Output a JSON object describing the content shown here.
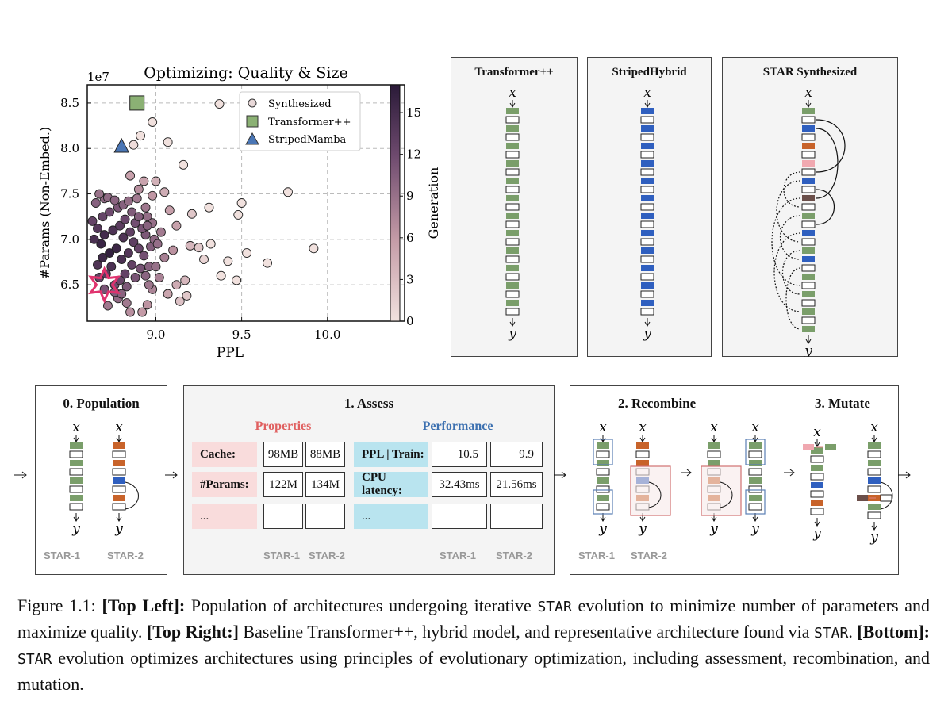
{
  "chart_data": {
    "type": "scatter",
    "title": "Optimizing: Quality & Size",
    "xlabel": "PPL",
    "ylabel": "#Params (Non-Embed.)",
    "y_offset_label": "1e7",
    "xlim": [
      8.6,
      10.45
    ],
    "ylim": [
      6.1,
      8.7
    ],
    "x_ticks": [
      "9.0",
      "9.5",
      "10.0"
    ],
    "y_ticks": [
      "6.5",
      "7.0",
      "7.5",
      "8.0",
      "8.5"
    ],
    "grid": true,
    "legend": {
      "placement": "top-right",
      "entries": [
        "Synthesized",
        "Transformer++",
        "StripedMamba"
      ]
    },
    "colorbar": {
      "label": "Generation",
      "ticks": [
        "0",
        "3",
        "6",
        "9",
        "12",
        "15"
      ],
      "range": [
        0,
        17
      ]
    },
    "special_points": [
      {
        "name": "Transformer++",
        "x": 8.89,
        "y": 8.5,
        "marker": "square",
        "color": "#8bb174"
      },
      {
        "name": "StripedMamba",
        "x": 8.8,
        "y": 8.02,
        "marker": "triangle",
        "color": "#4a76b5"
      },
      {
        "name": "best",
        "x": 8.7,
        "y": 6.5,
        "marker": "star",
        "color": "#e0336e"
      }
    ],
    "series": [
      {
        "name": "Synthesized",
        "points": [
          [
            9.37,
            8.49
          ],
          [
            8.98,
            8.29
          ],
          [
            8.91,
            8.14
          ],
          [
            9.07,
            8.07
          ],
          [
            8.87,
            8.04
          ],
          [
            9.16,
            7.82
          ],
          [
            8.85,
            7.7
          ],
          [
            8.93,
            7.64
          ],
          [
            9.0,
            7.64
          ],
          [
            9.05,
            7.52
          ],
          [
            8.98,
            7.48
          ],
          [
            9.31,
            7.35
          ],
          [
            9.5,
            7.4
          ],
          [
            9.77,
            7.52
          ],
          [
            9.48,
            7.27
          ],
          [
            9.21,
            7.28
          ],
          [
            9.08,
            7.32
          ],
          [
            8.95,
            7.25
          ],
          [
            9.12,
            7.15
          ],
          [
            9.03,
            7.08
          ],
          [
            9.2,
            6.93
          ],
          [
            9.25,
            6.91
          ],
          [
            9.32,
            6.95
          ],
          [
            9.1,
            6.88
          ],
          [
            9.05,
            6.8
          ],
          [
            9.28,
            6.78
          ],
          [
            9.42,
            6.76
          ],
          [
            9.53,
            6.85
          ],
          [
            9.65,
            6.74
          ],
          [
            9.92,
            6.9
          ],
          [
            9.47,
            6.55
          ],
          [
            9.38,
            6.6
          ],
          [
            9.17,
            6.55
          ],
          [
            9.12,
            6.5
          ],
          [
            9.02,
            6.58
          ],
          [
            9.07,
            6.4
          ],
          [
            8.98,
            6.45
          ],
          [
            9.14,
            6.32
          ],
          [
            9.18,
            6.38
          ],
          [
            8.95,
            6.28
          ],
          [
            8.92,
            6.2
          ],
          [
            8.85,
            6.2
          ],
          [
            8.83,
            6.3
          ],
          [
            8.78,
            6.35
          ],
          [
            8.72,
            6.27
          ],
          [
            8.76,
            6.5
          ],
          [
            8.7,
            6.45
          ],
          [
            8.67,
            6.58
          ],
          [
            8.71,
            6.62
          ],
          [
            8.74,
            6.7
          ],
          [
            8.66,
            6.72
          ],
          [
            8.69,
            6.8
          ],
          [
            8.73,
            6.85
          ],
          [
            8.77,
            6.9
          ],
          [
            8.68,
            6.95
          ],
          [
            8.64,
            7.0
          ],
          [
            8.7,
            7.05
          ],
          [
            8.75,
            7.1
          ],
          [
            8.79,
            7.15
          ],
          [
            8.66,
            7.12
          ],
          [
            8.63,
            7.2
          ],
          [
            8.69,
            7.25
          ],
          [
            8.73,
            7.3
          ],
          [
            8.78,
            7.35
          ],
          [
            8.65,
            7.4
          ],
          [
            8.7,
            7.45
          ],
          [
            8.67,
            7.5
          ],
          [
            8.72,
            7.46
          ],
          [
            8.76,
            7.43
          ],
          [
            8.81,
            7.38
          ],
          [
            8.84,
            7.42
          ],
          [
            8.86,
            7.3
          ],
          [
            8.82,
            7.22
          ],
          [
            8.88,
            7.18
          ],
          [
            8.85,
            7.08
          ],
          [
            8.81,
            7.02
          ],
          [
            8.87,
            6.97
          ],
          [
            8.9,
            6.9
          ],
          [
            8.84,
            6.85
          ],
          [
            8.8,
            6.78
          ],
          [
            8.86,
            6.72
          ],
          [
            8.91,
            6.68
          ],
          [
            8.82,
            6.62
          ],
          [
            8.88,
            6.58
          ],
          [
            8.79,
            6.55
          ],
          [
            8.83,
            6.48
          ],
          [
            8.76,
            6.42
          ],
          [
            8.8,
            6.4
          ],
          [
            8.94,
            6.6
          ],
          [
            8.96,
            6.7
          ],
          [
            8.93,
            6.82
          ],
          [
            8.97,
            6.92
          ],
          [
            8.99,
            7.0
          ],
          [
            8.94,
            7.05
          ],
          [
            8.92,
            7.12
          ],
          [
            8.98,
            7.18
          ],
          [
            8.9,
            7.25
          ],
          [
            8.94,
            7.35
          ],
          [
            8.89,
            7.45
          ],
          [
            8.9,
            7.55
          ],
          [
            8.95,
            7.15
          ],
          [
            9.01,
            6.95
          ],
          [
            9.0,
            6.7
          ],
          [
            8.96,
            6.5
          ]
        ]
      }
    ]
  },
  "top_right": {
    "transformer": {
      "title": "Transformer++",
      "x": "x",
      "y": "y"
    },
    "striped": {
      "title": "StripedHybrid",
      "x": "x",
      "y": "y"
    },
    "star": {
      "title": "STAR Synthesized",
      "x": "x",
      "y": "y"
    },
    "colors": {
      "green": "#7a9e6a",
      "blue": "#2f5fbf",
      "orange": "#c8632a",
      "pink": "#f0a8b0",
      "brown": "#6b4f4a",
      "title_green": "#5a8a4a",
      "title_blue": "#3c6a9c",
      "title_pink": "#d83a6e"
    }
  },
  "bottom": {
    "population": {
      "title": "0. Population",
      "star1": "STAR-1",
      "star2": "STAR-2"
    },
    "assess": {
      "title": "1. Assess",
      "properties_header": "Properties",
      "performance_header": "Performance",
      "properties": [
        {
          "label": "Cache:",
          "v1": "98MB",
          "v2": "88MB"
        },
        {
          "label": "#Params:",
          "v1": "122M",
          "v2": "134M"
        },
        {
          "label": "...",
          "v1": "",
          "v2": ""
        }
      ],
      "performance": [
        {
          "label": "PPL | Train:",
          "v1": "10.5",
          "v2": "9.9"
        },
        {
          "label": "CPU latency:",
          "v1": "32.43ms",
          "v2": "21.56ms"
        },
        {
          "label": "...",
          "v1": "",
          "v2": ""
        }
      ],
      "star1": "STAR-1",
      "star2": "STAR-2"
    },
    "recombine": {
      "title": "2. Recombine",
      "star1": "STAR-1",
      "star2": "STAR-2"
    },
    "mutate": {
      "title": "3. Mutate"
    },
    "xlabel": "x",
    "ylabel": "y"
  },
  "caption": {
    "figure_label": "Figure 1.1:",
    "top_left_label": "[Top Left]:",
    "top_left_text": " Population of architectures undergoing iterative ",
    "star_word": "STAR",
    "top_left_text2": " evolution to minimize number of parameters and maximize quality.",
    "top_right_label": "[Top Right:]",
    "top_right_text": " Baseline Transformer++, hybrid model, and representative architecture found via ",
    "top_right_text2": ".",
    "bottom_label": "[Bottom]:",
    "bottom_text": " evolution optimizes architectures using principles of evolutionary optimization, including assessment, recombination, and mutation."
  }
}
